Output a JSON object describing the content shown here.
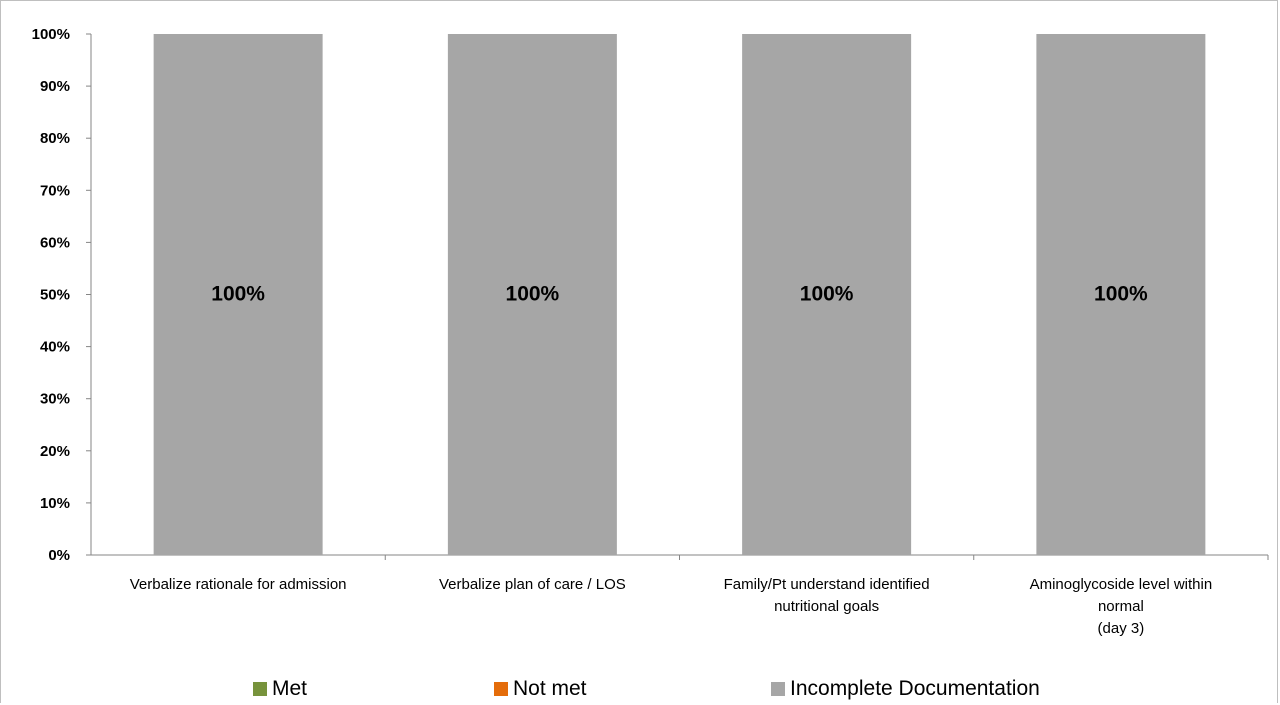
{
  "chart_data": {
    "type": "bar",
    "stacked": true,
    "categories": [
      "Verbalize rationale for admission",
      "Verbalize plan of care / LOS",
      "Family/Pt understand identified nutritional goals",
      "Aminoglycoside level within normal (day 3)"
    ],
    "category_lines": [
      [
        "Verbalize rationale for admission"
      ],
      [
        "Verbalize plan of care / LOS"
      ],
      [
        "Family/Pt understand identified",
        "nutritional goals"
      ],
      [
        "Aminoglycoside level within",
        "normal",
        "(day 3)"
      ]
    ],
    "series": [
      {
        "name": "Met",
        "color": "#77933c",
        "values": [
          0,
          0,
          0,
          0
        ]
      },
      {
        "name": "Not met",
        "color": "#e46c0a",
        "values": [
          0,
          0,
          0,
          0
        ]
      },
      {
        "name": "Incomplete Documentation",
        "color": "#a6a6a6",
        "values": [
          100,
          100,
          100,
          100
        ]
      }
    ],
    "data_labels": [
      "100%",
      "100%",
      "100%",
      "100%"
    ],
    "ylim": [
      0,
      100
    ],
    "yticks": [
      "0%",
      "10%",
      "20%",
      "30%",
      "40%",
      "50%",
      "60%",
      "70%",
      "80%",
      "90%",
      "100%"
    ],
    "legend_position": "bottom",
    "grid": false
  }
}
